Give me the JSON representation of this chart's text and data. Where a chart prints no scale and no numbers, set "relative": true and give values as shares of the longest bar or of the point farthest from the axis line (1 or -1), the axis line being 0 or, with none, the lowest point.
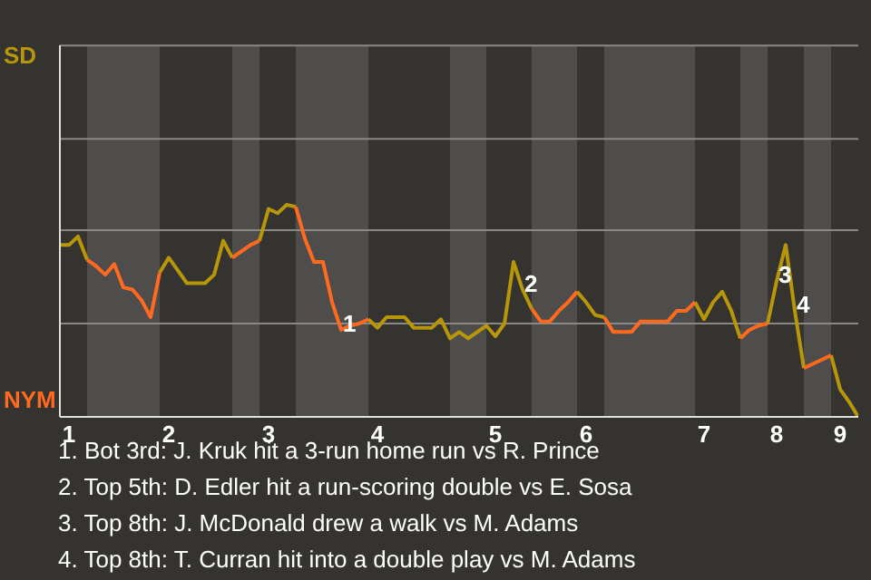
{
  "chart_data": {
    "type": "line",
    "relative": true,
    "categories": [
      null,
      "1",
      null,
      null,
      null,
      null,
      null,
      null,
      null,
      null,
      null,
      null,
      "2",
      null,
      null,
      null,
      null,
      null,
      null,
      null,
      null,
      null,
      null,
      "3",
      null,
      null,
      null,
      null,
      null,
      null,
      null,
      null,
      null,
      null,
      null,
      "4",
      null,
      null,
      null,
      null,
      null,
      null,
      null,
      null,
      null,
      null,
      null,
      null,
      "5",
      null,
      null,
      null,
      null,
      null,
      null,
      null,
      null,
      null,
      "6",
      null,
      null,
      null,
      null,
      null,
      null,
      null,
      null,
      null,
      null,
      null,
      null,
      "7",
      null,
      null,
      null,
      null,
      null,
      null,
      null,
      "8",
      null,
      null,
      null,
      null,
      null,
      null,
      "9",
      null,
      null
    ],
    "marker": "none",
    "line_style": "solid",
    "ref_lines": [
      {
        "axis": "y",
        "value": 0.44,
        "color": "#8a8886"
      },
      {
        "axis": "y",
        "value": 0.88,
        "color": "#8a8886"
      },
      {
        "axis": "y",
        "value": 1.31,
        "color": "#8a8886"
      },
      {
        "axis": "y",
        "value": 1.75,
        "color": "#8a8886"
      }
    ],
    "series": [
      {
        "name": "SD",
        "color": "#b8960a",
        "values": [
          0.81,
          0.81,
          0.85,
          0.74,
          null,
          null,
          null,
          null,
          null,
          null,
          null,
          0.68,
          0.75,
          0.69,
          0.63,
          0.63,
          0.63,
          0.67,
          0.83,
          0.75,
          null,
          null,
          0.83,
          0.98,
          0.96,
          1,
          0.99,
          null,
          null,
          null,
          null,
          null,
          null,
          null,
          0.46,
          0.42,
          0.47,
          0.47,
          0.47,
          0.42,
          0.42,
          0.42,
          0.46,
          0.37,
          0.4,
          0.37,
          0.4,
          0.43,
          0.38,
          0.44,
          0.73,
          0.6,
          0.51,
          null,
          null,
          null,
          null,
          0.59,
          0.54,
          0.48,
          0.47,
          null,
          null,
          null,
          null,
          null,
          null,
          null,
          null,
          null,
          0.54,
          0.46,
          0.54,
          0.59,
          0.5,
          0.37,
          null,
          null,
          0.44,
          0.64,
          0.81,
          0.5,
          0.23,
          null,
          null,
          0.29,
          0.13,
          0.07,
          0
        ]
      },
      {
        "name": "NYM",
        "color": "#ff6a1e",
        "values": [
          null,
          null,
          null,
          0.74,
          0.71,
          0.67,
          0.72,
          0.61,
          0.6,
          0.55,
          0.47,
          0.68,
          null,
          null,
          null,
          null,
          null,
          null,
          null,
          0.75,
          0.78,
          0.81,
          0.83,
          null,
          null,
          null,
          0.99,
          0.84,
          0.73,
          0.73,
          0.54,
          0.41,
          0.43,
          0.44,
          0.46,
          null,
          null,
          null,
          null,
          null,
          null,
          null,
          null,
          null,
          null,
          null,
          null,
          null,
          null,
          null,
          null,
          null,
          0.51,
          0.45,
          0.45,
          0.5,
          0.54,
          0.59,
          null,
          null,
          0.47,
          0.4,
          0.4,
          0.4,
          0.45,
          0.45,
          0.45,
          0.45,
          0.5,
          0.5,
          0.54,
          null,
          null,
          null,
          null,
          0.37,
          0.41,
          0.43,
          0.44,
          null,
          null,
          null,
          0.23,
          0.25,
          0.27,
          0.29,
          null,
          null,
          null
        ]
      }
    ],
    "annotations": [
      {
        "text": "1",
        "y": 0.41
      },
      {
        "text": "2",
        "y": 0.6
      },
      {
        "text": "3",
        "y": 0.64
      },
      {
        "text": "4",
        "y": 0.5
      },
      "1. Bot 3rd: J. Kruk hit a 3-run home run vs R. Prince",
      "2. Top 5th: D. Edler hit a run-scoring double vs E. Sosa",
      "3. Top 8th: J. McDonald drew a walk vs M. Adams",
      "4. Top 8th: T. Curran hit into a double play vs M. Adams"
    ]
  }
}
